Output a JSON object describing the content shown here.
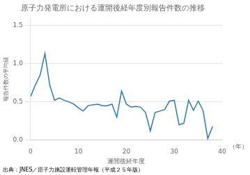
{
  "chart_data": {
    "type": "line",
    "title": "原子力発電所における運開後経年度別報告件数の推移",
    "xlabel": "運開後経年度",
    "ylabel": "報告件数の平均値",
    "annotations": [
      "（年）",
      "出典：JNES／原子力施設運転管理年報（平成２５年版）"
    ],
    "x": [
      0,
      1,
      2,
      3,
      4,
      5,
      6,
      7,
      8,
      9,
      10,
      11,
      12,
      13,
      14,
      15,
      16,
      17,
      18,
      19,
      20,
      21,
      22,
      23,
      24,
      25,
      26,
      27,
      28,
      29,
      30,
      31,
      32,
      33,
      34,
      35,
      36,
      37,
      38
    ],
    "values": [
      0.57,
      0.72,
      0.85,
      1.13,
      0.72,
      0.52,
      0.55,
      0.52,
      0.5,
      0.47,
      0.42,
      0.38,
      0.45,
      0.46,
      0.47,
      0.45,
      0.45,
      0.47,
      0.3,
      0.64,
      0.47,
      0.43,
      0.44,
      0.43,
      0.36,
      0.12,
      0.36,
      0.38,
      0.4,
      0.51,
      0.52,
      0.2,
      0.22,
      0.52,
      0.39,
      0.51,
      0.39,
      0.02,
      0.18
    ],
    "color": "#2b7bba",
    "xlim": [
      0,
      40
    ],
    "ylim": [
      0.0,
      1.6
    ],
    "xticks": [
      0,
      10,
      20,
      30,
      40
    ],
    "yticks": [
      {
        "value": 0,
        "label": "0.0"
      },
      0.5,
      {
        "value": 1,
        "label": "1.0"
      },
      1.5
    ],
    "grid": "y"
  }
}
